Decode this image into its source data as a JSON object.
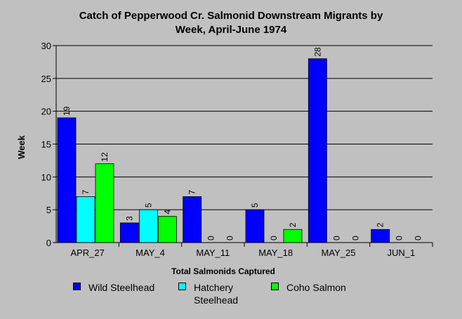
{
  "chart_data": {
    "type": "bar",
    "title_line1": "Catch of Pepperwood Cr. Salmonid Downstream Migrants by",
    "title_line2": "Week, April-June 1974",
    "xlabel": "Total Salmonids Captured",
    "ylabel": "Week",
    "ylim": [
      0,
      30
    ],
    "yticks": [
      0,
      5,
      10,
      15,
      20,
      25,
      30
    ],
    "grid": true,
    "legend_position": "bottom",
    "categories": [
      "APR_27",
      "MAY_4",
      "MAY_11",
      "MAY_18",
      "MAY_25",
      "JUN_1"
    ],
    "series": [
      {
        "name": "Wild Steelhead",
        "color": "#0000ff",
        "values": [
          19,
          3,
          7,
          5,
          28,
          2
        ]
      },
      {
        "name": "Hatchery Steelhead",
        "color": "#00ffff",
        "values": [
          7,
          5,
          0,
          0,
          0,
          0
        ]
      },
      {
        "name": "Coho Salmon",
        "color": "#00ff00",
        "values": [
          12,
          4,
          0,
          2,
          0,
          0
        ]
      }
    ]
  }
}
